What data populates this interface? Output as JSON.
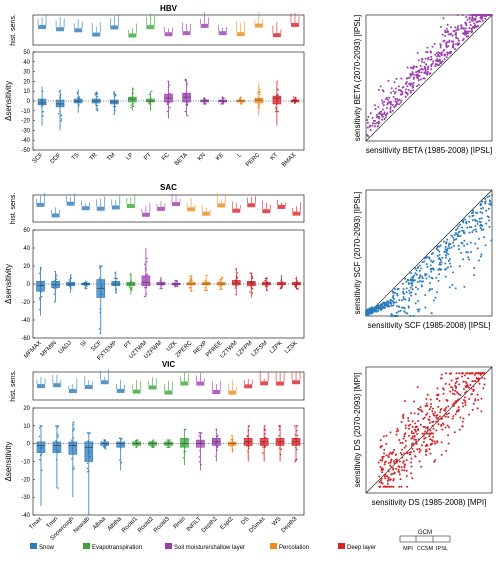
{
  "colors": {
    "snow": "#2b7bbb",
    "evapotranspiration": "#3aa63a",
    "soil": "#9a3eae",
    "percolation": "#f08a1c",
    "deep": "#d92228",
    "frame": "#000000"
  },
  "legend": {
    "items": [
      {
        "key": "snow",
        "label": "Snow"
      },
      {
        "key": "evapotranspiration",
        "label": "Evapotranspiration"
      },
      {
        "key": "soil",
        "label": "Soil moisture/shallow layer"
      },
      {
        "key": "percolation",
        "label": "Percolation"
      },
      {
        "key": "deep",
        "label": "Deep layer"
      }
    ],
    "gcm": {
      "title": "GCM",
      "labels": [
        "MPI",
        "CCSM",
        "IPSL"
      ]
    }
  },
  "chart_data": [
    {
      "type": "box",
      "title": "HBV",
      "ylabel_top": "hist. sens.",
      "ylabel": "Δsensitivity",
      "ylim": [
        -50,
        50
      ],
      "yticks": [
        -50,
        -40,
        -30,
        -20,
        -10,
        0,
        10,
        20,
        30,
        40,
        50
      ],
      "categories": [
        "SCF",
        "DDF",
        "TS",
        "TR",
        "TM",
        "LP",
        "PT",
        "FC",
        "BETA",
        "KN",
        "KE",
        "L",
        "PERC",
        "KT",
        "BMAX"
      ],
      "groups": [
        "snow",
        "snow",
        "snow",
        "snow",
        "snow",
        "evapotranspiration",
        "evapotranspiration",
        "soil",
        "soil",
        "soil",
        "soil",
        "percolation",
        "percolation",
        "deep",
        "deep"
      ],
      "median": [
        -2,
        -3,
        0,
        0,
        -1,
        2,
        0,
        3,
        4,
        0,
        0,
        0,
        1,
        3,
        0
      ],
      "q1": [
        -4,
        -6,
        -2,
        -2,
        -3,
        -1,
        -1,
        -1,
        -1,
        -1,
        -1,
        -1,
        -2,
        -3,
        -1
      ],
      "q3": [
        2,
        1,
        2,
        2,
        1,
        4,
        2,
        7,
        8,
        1,
        1,
        1,
        3,
        5,
        1
      ],
      "min": [
        -25,
        -30,
        -12,
        -10,
        -14,
        -10,
        -10,
        -18,
        -15,
        -3,
        -3,
        -3,
        -15,
        -25,
        -3
      ],
      "max": [
        15,
        12,
        12,
        10,
        10,
        14,
        10,
        20,
        22,
        4,
        4,
        4,
        18,
        20,
        4
      ]
    },
    {
      "type": "box",
      "title": "SAC",
      "ylabel_top": "hist. sens.",
      "ylabel": "Δsensitivity",
      "ylim": [
        -60,
        60
      ],
      "yticks": [
        -60,
        -40,
        -20,
        0,
        20,
        40,
        60
      ],
      "categories": [
        "MFMAX",
        "MFMIN",
        "UADJ",
        "SI",
        "SCF",
        "PXTEMP",
        "PT",
        "UZTWM",
        "UZFWM",
        "UZK",
        "ZPERC",
        "REXP",
        "PFREE",
        "LZTWM",
        "LZFPM",
        "LZFSM",
        "LZPK",
        "LZSK"
      ],
      "groups": [
        "snow",
        "snow",
        "snow",
        "snow",
        "snow",
        "snow",
        "evapotranspiration",
        "soil",
        "soil",
        "soil",
        "percolation",
        "percolation",
        "percolation",
        "deep",
        "deep",
        "deep",
        "deep",
        "deep"
      ],
      "median": [
        -2,
        -1,
        0,
        0,
        -5,
        0,
        0,
        2,
        0,
        0,
        0,
        0,
        0,
        1,
        1,
        0,
        0,
        0
      ],
      "q1": [
        -8,
        -4,
        -2,
        -1,
        -15,
        -2,
        -2,
        -2,
        -1,
        -1,
        -1,
        -1,
        -1,
        -1,
        -2,
        -1,
        -1,
        -1
      ],
      "q3": [
        3,
        3,
        2,
        1,
        5,
        3,
        2,
        9,
        2,
        1,
        2,
        2,
        2,
        4,
        3,
        2,
        2,
        2
      ],
      "min": [
        -35,
        -20,
        -10,
        -5,
        -55,
        -10,
        -12,
        -15,
        -5,
        -3,
        -8,
        -8,
        -6,
        -12,
        -15,
        -8,
        -6,
        -6
      ],
      "max": [
        18,
        14,
        10,
        4,
        20,
        14,
        12,
        40,
        8,
        4,
        10,
        10,
        8,
        18,
        12,
        8,
        10,
        8
      ]
    },
    {
      "type": "box",
      "title": "VIC",
      "ylabel_top": "hist. sens.",
      "ylabel": "Δsensitivity",
      "ylim": [
        -40,
        20
      ],
      "yticks": [
        -40,
        -30,
        -20,
        -10,
        0,
        10,
        20
      ],
      "categories": [
        "Tmax",
        "Tmin",
        "Snowrough",
        "Newalb",
        "Albaa",
        "Albtha",
        "Rootd1",
        "Rootd2",
        "Rootd3",
        "Rmin",
        "INFILT",
        "Depth2",
        "Expt2",
        "DS",
        "DSmax",
        "WS",
        "Depth3"
      ],
      "groups": [
        "snow",
        "snow",
        "snow",
        "snow",
        "snow",
        "snow",
        "evapotranspiration",
        "evapotranspiration",
        "evapotranspiration",
        "evapotranspiration",
        "soil",
        "soil",
        "percolation",
        "deep",
        "deep",
        "deep",
        "deep"
      ],
      "median": [
        -1,
        -1,
        -1,
        -2,
        0,
        0,
        0,
        0,
        0,
        0,
        0,
        1,
        0,
        1,
        1,
        1,
        1
      ],
      "q1": [
        -5,
        -5,
        -6,
        -10,
        -1,
        -2,
        -1,
        -1,
        -1,
        -2,
        -2,
        -1,
        -1,
        -1,
        -1,
        -1,
        -1
      ],
      "q3": [
        1,
        1,
        1,
        1,
        1,
        1,
        1,
        1,
        1,
        3,
        2,
        3,
        1,
        3,
        3,
        3,
        3
      ],
      "min": [
        -35,
        -25,
        -30,
        -40,
        -3,
        -15,
        -2,
        -2,
        -2,
        -12,
        -15,
        -10,
        -5,
        -10,
        -10,
        -10,
        -10
      ],
      "max": [
        10,
        10,
        12,
        6,
        2,
        3,
        2,
        2,
        2,
        8,
        6,
        8,
        5,
        10,
        10,
        10,
        10
      ]
    },
    {
      "type": "scatter",
      "xlabel": "sensitivity BETA (1985-2008) [IPSL]",
      "ylabel": "sensitivity BETA (2070-2093) [IPSL]",
      "color": "soil",
      "trend_note": "points mostly above 1:1 line",
      "n_points": 500
    },
    {
      "type": "scatter",
      "xlabel": "sensitivity SCF (1985-2008) [IPSL]",
      "ylabel": "sensitivity SCF (2070-2093) [IPSL]",
      "color": "snow",
      "trend_note": "points mostly below 1:1 line",
      "n_points": 500
    },
    {
      "type": "scatter",
      "xlabel": "sensitivity DS (1985-2008) [MPI]",
      "ylabel": "sensitivity DS (2070-2093) [MPI]",
      "color": "deep",
      "trend_note": "points around 1:1 line",
      "n_points": 500
    }
  ]
}
